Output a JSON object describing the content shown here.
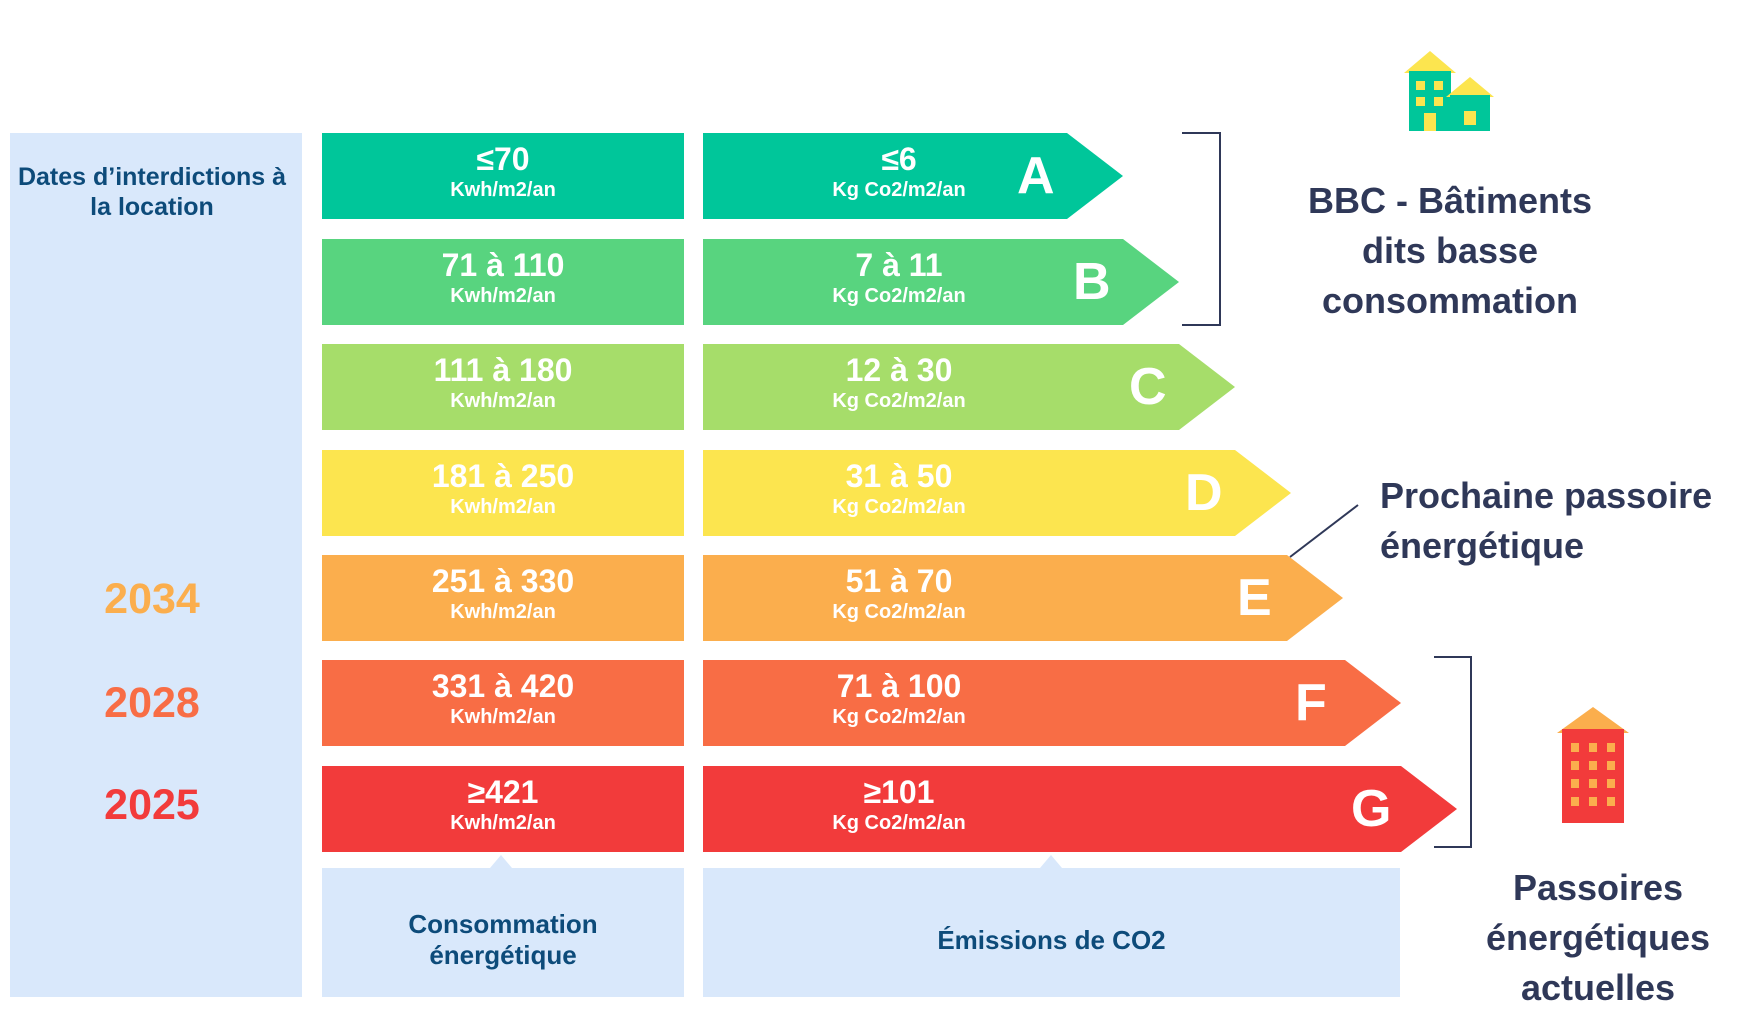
{
  "dates_column": {
    "title": "Dates d’interdictions à la location",
    "years": [
      {
        "label": "2034",
        "color": "#fbae4d"
      },
      {
        "label": "2028",
        "color": "#f86d45"
      },
      {
        "label": "2025",
        "color": "#f23b3b"
      }
    ]
  },
  "classes": [
    {
      "letter": "A",
      "consumption": "≤70",
      "consumption_unit": "Kwh/m2/an",
      "emission": "≤6",
      "emission_unit": "Kg Co2/m2/an",
      "color": "#00c69a"
    },
    {
      "letter": "B",
      "consumption": "71 à 110",
      "consumption_unit": "Kwh/m2/an",
      "emission": "7 à 11",
      "emission_unit": "Kg Co2/m2/an",
      "color": "#58d47f"
    },
    {
      "letter": "C",
      "consumption": "111 à 180",
      "consumption_unit": "Kwh/m2/an",
      "emission": "12 à 30",
      "emission_unit": "Kg Co2/m2/an",
      "color": "#a6dd6a"
    },
    {
      "letter": "D",
      "consumption": "181 à 250",
      "consumption_unit": "Kwh/m2/an",
      "emission": "31 à 50",
      "emission_unit": "Kg Co2/m2/an",
      "color": "#fce54f"
    },
    {
      "letter": "E",
      "consumption": "251 à 330",
      "consumption_unit": "Kwh/m2/an",
      "emission": "51 à 70",
      "emission_unit": "Kg Co2/m2/an",
      "color": "#fbae4d"
    },
    {
      "letter": "F",
      "consumption": "331 à 420",
      "consumption_unit": "Kwh/m2/an",
      "emission": "71  à 100",
      "emission_unit": "Kg Co2/m2/an",
      "color": "#f86d45"
    },
    {
      "letter": "G",
      "consumption": "≥421",
      "consumption_unit": "Kwh/m2/an",
      "emission": "≥101",
      "emission_unit": "Kg Co2/m2/an",
      "color": "#f23b3b"
    }
  ],
  "bottom_labels": {
    "consumption": "Consommation énergétique",
    "emissions": "Émissions de CO2"
  },
  "annotations": {
    "bbc": "BBC - Bâtiments dits basse consommation",
    "next_sieve": "Prochaine passoire énergétique",
    "current_sieves": "Passoires énergétiques actuelles"
  },
  "icons": {
    "bbc": "green-houses-icon",
    "current_sieves": "red-building-icon"
  },
  "colors": {
    "panel_bg": "#d9e8fb",
    "label_blue": "#0d4b7a",
    "annotation_text": "#2f3858"
  }
}
